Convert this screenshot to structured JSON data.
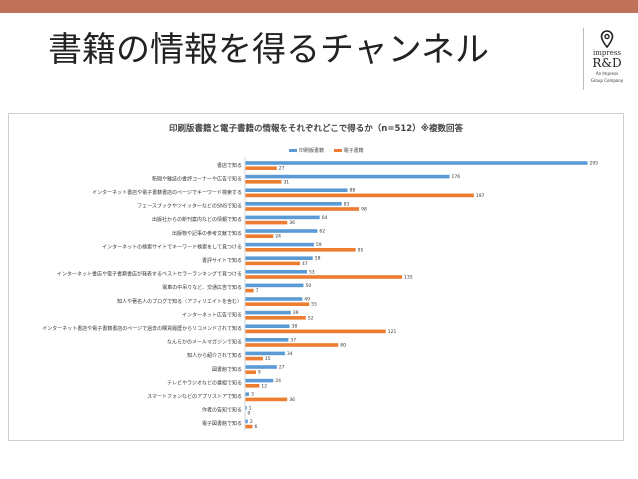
{
  "slide": {
    "title": "書籍の情報を得るチャンネル"
  },
  "logo": {
    "line1": "impress",
    "line2": "R&D",
    "line3": "An Impress",
    "line4": "Group Company"
  },
  "colors": {
    "top_bar": "#c0715a",
    "print": "#5b9bd5",
    "ebook": "#ed7d31"
  },
  "chart_data": {
    "type": "bar",
    "orientation": "horizontal",
    "title": "印刷版書籍と電子書籍の情報をそれぞれどこで得るか（n=512）※複数回答",
    "legend_position": "top",
    "grid": false,
    "xlim": [
      0,
      295
    ],
    "categories": [
      "書店で知る",
      "新聞や雑誌の書評コーナーや広告で知る",
      "インターネット書店や電子書籍書店のページでキーワード検索する",
      "フェースブックやツイッターなどのSNSで知る",
      "出版社からの新刊案内などの情報で知る",
      "出版物や記事の参考文献で知る",
      "インターネットの検索サイトでキーワード検索をして見つける",
      "書評サイトで知る",
      "インターネット書店や電子書籍書店が発表するベストセラーランキングで見つける",
      "電車の中吊りなど、交通広告で知る",
      "知人や著名人のブログで知る（アフィリエイトを含む）",
      "インターネット広告で知る",
      "インターネット書店や電子書籍書店のページで過去の購買履歴からリコメンドされて知る",
      "なんらかのメールマガジンで知る",
      "知人から紹介されて知る",
      "図書館で知る",
      "テレビやラジオなどの番組で知る",
      "スマートフォンなどのアプリストアで知る",
      "作者の告知で知る",
      "電子図書館で知る"
    ],
    "series": [
      {
        "name": "印刷版書籍",
        "values": [
          295,
          176,
          88,
          83,
          64,
          62,
          59,
          58,
          53,
          50,
          49,
          39,
          38,
          37,
          34,
          27,
          24,
          3,
          1,
          2
        ]
      },
      {
        "name": "電子書籍",
        "values": [
          27,
          31,
          197,
          98,
          36,
          24,
          95,
          47,
          135,
          7,
          55,
          52,
          121,
          80,
          15,
          9,
          12,
          36,
          0,
          6
        ]
      }
    ]
  }
}
